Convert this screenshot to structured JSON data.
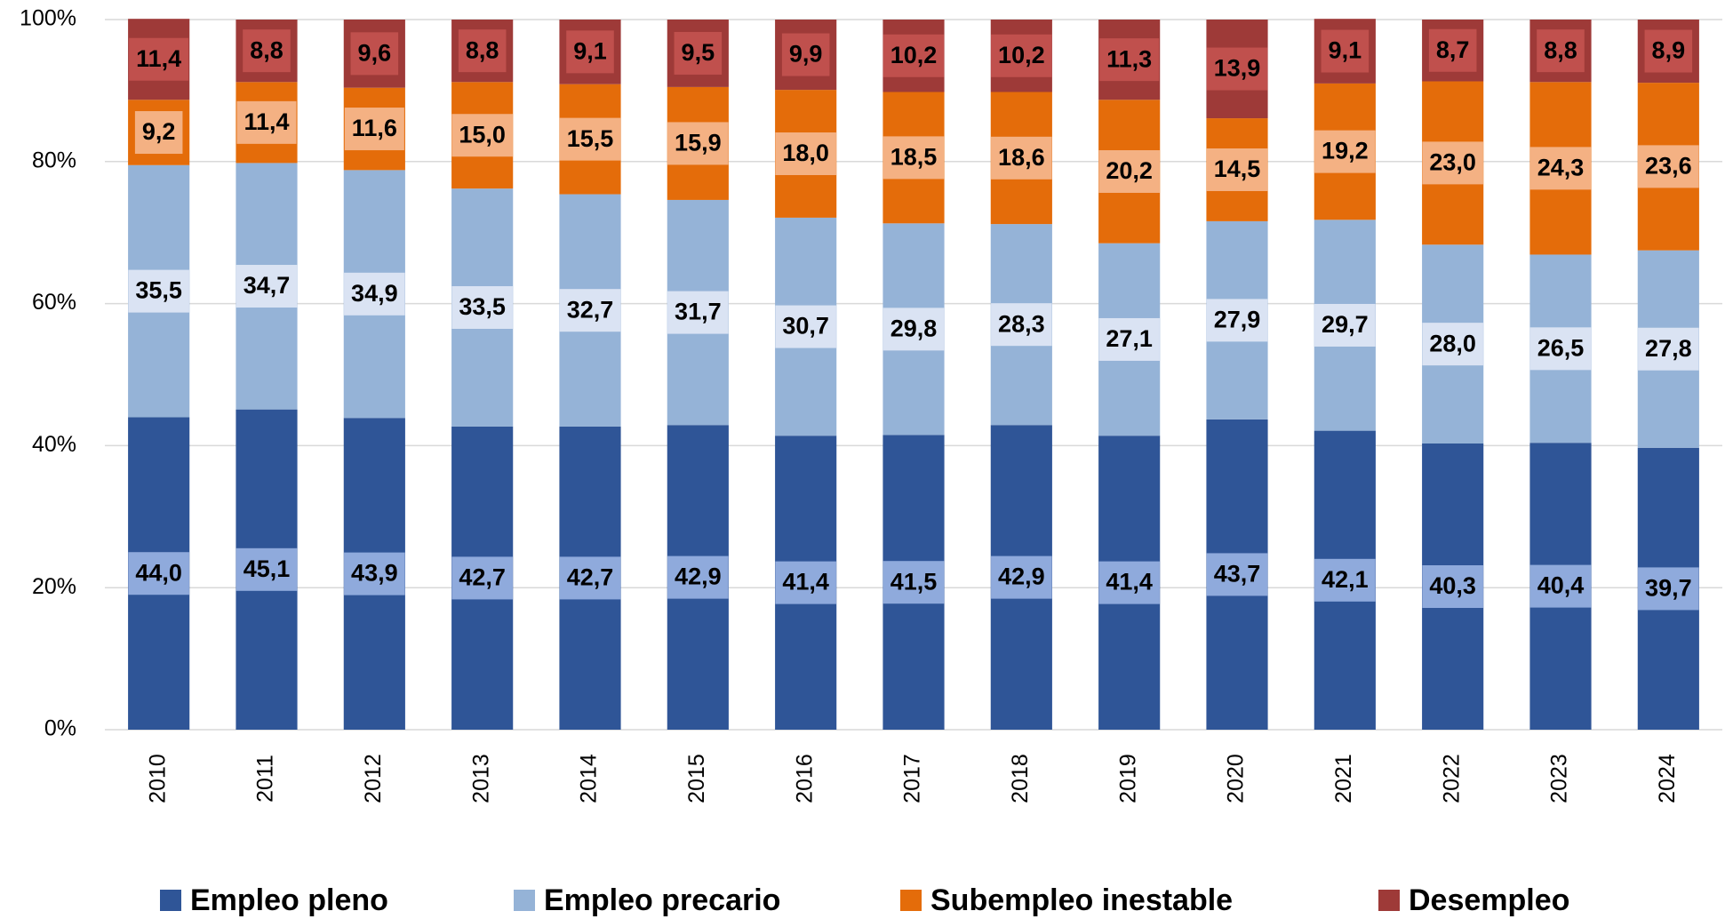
{
  "chart_data": {
    "type": "stacked_bar",
    "categories": [
      "2010",
      "2011",
      "2012",
      "2013",
      "2014",
      "2015",
      "2016",
      "2017",
      "2018",
      "2019",
      "2020",
      "2021",
      "2022",
      "2023",
      "2024"
    ],
    "series": [
      {
        "name": "Empleo pleno",
        "color": "#2f5597",
        "label_color": "#8faadc",
        "values": [
          44.0,
          45.1,
          43.9,
          42.7,
          42.7,
          42.9,
          41.4,
          41.5,
          42.9,
          41.4,
          43.7,
          42.1,
          40.3,
          40.4,
          39.7
        ],
        "value_labels": [
          "44,0",
          "45,1",
          "43,9",
          "42,7",
          "42,7",
          "42,9",
          "41,4",
          "41,5",
          "42,9",
          "41,4",
          "43,7",
          "42,1",
          "40,3",
          "40,4",
          "39,7"
        ]
      },
      {
        "name": "Empleo precario",
        "color": "#95b3d7",
        "label_color": "#dae3f3",
        "values": [
          35.5,
          34.7,
          34.9,
          33.5,
          32.7,
          31.7,
          30.7,
          29.8,
          28.3,
          27.1,
          27.9,
          29.7,
          28.0,
          26.5,
          27.8
        ],
        "value_labels": [
          "35,5",
          "34,7",
          "34,9",
          "33,5",
          "32,7",
          "31,7",
          "30,7",
          "29,8",
          "28,3",
          "27,1",
          "27,9",
          "29,7",
          "28,0",
          "26,5",
          "27,8"
        ]
      },
      {
        "name": "Subempleo inestable",
        "color": "#e46c0a",
        "label_color": "#f4b183",
        "values": [
          9.2,
          11.4,
          11.6,
          15.0,
          15.5,
          15.9,
          18.0,
          18.5,
          18.6,
          20.2,
          14.5,
          19.2,
          23.0,
          24.3,
          23.6
        ],
        "value_labels": [
          "9,2",
          "11,4",
          "11,6",
          "15,0",
          "15,5",
          "15,9",
          "18,0",
          "18,5",
          "18,6",
          "20,2",
          "14,5",
          "19,2",
          "23,0",
          "24,3",
          "23,6"
        ]
      },
      {
        "name": "Desempleo",
        "color": "#9e3a38",
        "label_color": "#c0504d",
        "values": [
          11.4,
          8.8,
          9.6,
          8.8,
          9.1,
          9.5,
          9.9,
          10.2,
          10.2,
          11.3,
          13.9,
          9.1,
          8.7,
          8.8,
          8.9
        ],
        "value_labels": [
          "11,4",
          "8,8",
          "9,6",
          "8,8",
          "9,1",
          "9,5",
          "9,9",
          "10,2",
          "10,2",
          "11,3",
          "13,9",
          "9,1",
          "8,7",
          "8,8",
          "8,9"
        ]
      }
    ],
    "ylim": [
      0,
      100
    ],
    "yticks": [
      {
        "value": 0,
        "label": "0%"
      },
      {
        "value": 20,
        "label": "20%"
      },
      {
        "value": 40,
        "label": "40%"
      },
      {
        "value": 60,
        "label": "60%"
      },
      {
        "value": 80,
        "label": "80%"
      },
      {
        "value": 100,
        "label": "100%"
      }
    ],
    "grid": true,
    "legend": "bottom"
  }
}
